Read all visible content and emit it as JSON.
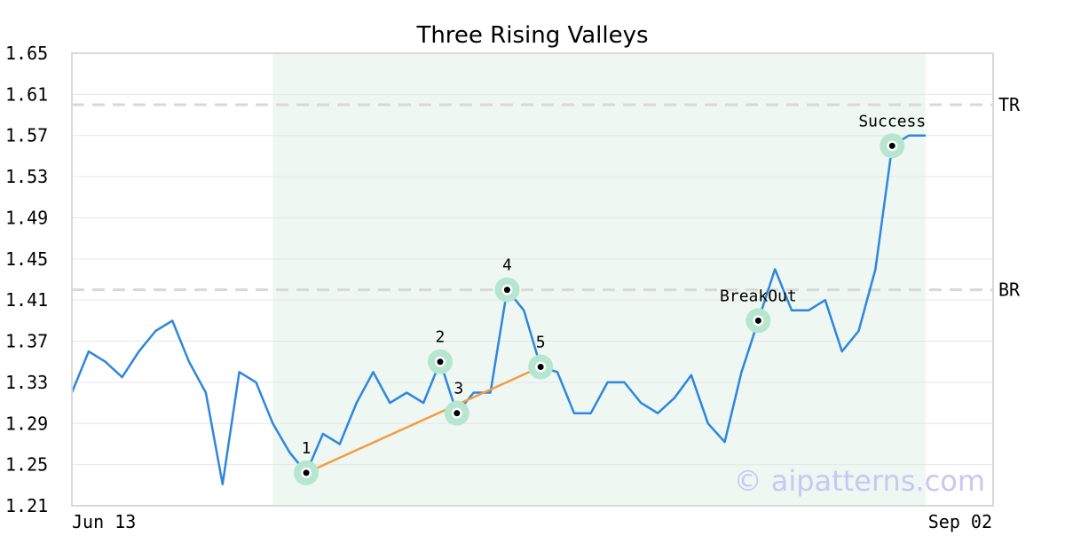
{
  "chart_data": {
    "type": "line",
    "title": "Three Rising Valleys",
    "xlabel": "",
    "ylabel": "",
    "ylim": [
      1.21,
      1.65
    ],
    "yticks": [
      "1.21",
      "1.25",
      "1.29",
      "1.33",
      "1.37",
      "1.41",
      "1.45",
      "1.49",
      "1.53",
      "1.57",
      "1.61",
      "1.65"
    ],
    "x_tick_labels": [
      {
        "index": 0,
        "label": "Jun 13"
      },
      {
        "index": 54,
        "label": "Sep 02"
      }
    ],
    "grid": true,
    "values": [
      1.32,
      1.36,
      1.35,
      1.335,
      1.36,
      1.38,
      1.39,
      1.35,
      1.32,
      1.231,
      1.34,
      1.33,
      1.29,
      1.262,
      1.242,
      1.28,
      1.27,
      1.31,
      1.34,
      1.31,
      1.32,
      1.31,
      1.35,
      1.3,
      1.32,
      1.32,
      1.42,
      1.4,
      1.345,
      1.34,
      1.3,
      1.3,
      1.33,
      1.33,
      1.31,
      1.3,
      1.315,
      1.337,
      1.29,
      1.272,
      1.34,
      1.39,
      1.44,
      1.4,
      1.4,
      1.41,
      1.36,
      1.38,
      1.44,
      1.56,
      1.57,
      1.57
    ],
    "series_color": "#2e86de",
    "highlight_region": {
      "start_index": 12,
      "end_index": 51,
      "color": "#eef7f2"
    },
    "reference_lines": [
      {
        "label": "TR",
        "value": 1.6
      },
      {
        "label": "BR",
        "value": 1.42
      }
    ],
    "trendline": {
      "from_index": 14,
      "to_index": 28,
      "color": "#f39c41"
    },
    "annotations": [
      {
        "label": "1",
        "index": 14,
        "value": 1.242,
        "label_pos": "above"
      },
      {
        "label": "2",
        "index": 22,
        "value": 1.35,
        "label_pos": "above"
      },
      {
        "label": "3",
        "index": 23,
        "value": 1.3,
        "label_pos": "above-right"
      },
      {
        "label": "4",
        "index": 26,
        "value": 1.42,
        "label_pos": "above"
      },
      {
        "label": "5",
        "index": 28,
        "value": 1.345,
        "label_pos": "above"
      },
      {
        "label": "BreakOut",
        "index": 41,
        "value": 1.39,
        "label_pos": "above"
      },
      {
        "label": "Success",
        "index": 49,
        "value": 1.56,
        "label_pos": "above"
      }
    ],
    "marker_color": "#b6e6cf",
    "watermark": "© aipatterns.com"
  }
}
